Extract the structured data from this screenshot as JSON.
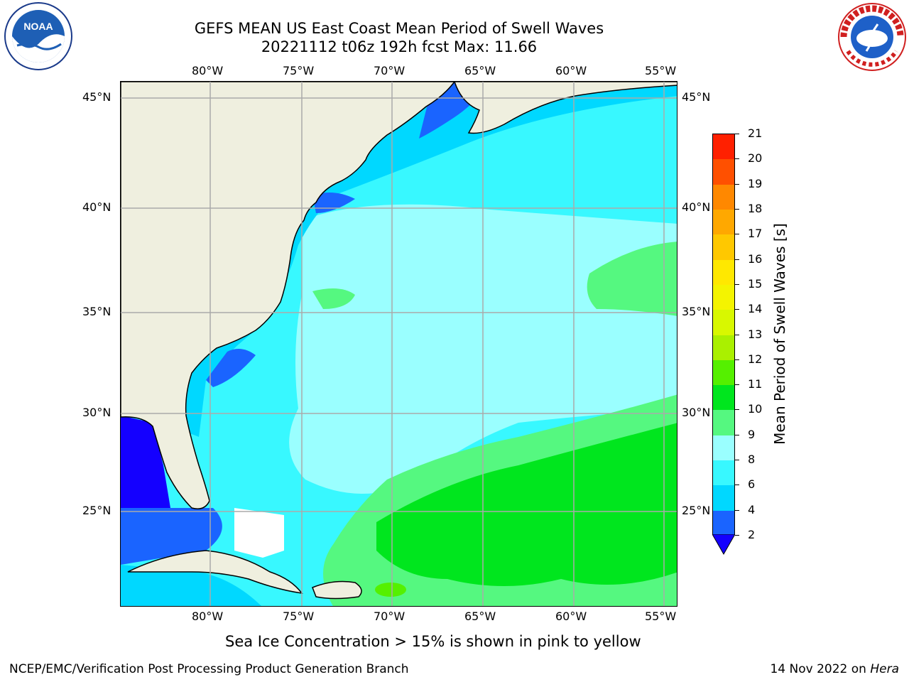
{
  "title": {
    "line1": "GEFS MEAN US East Coast Mean Period of Swell Waves",
    "line2": "20221112 t06z 192h fcst   Max: 11.66"
  },
  "logos": {
    "left": {
      "name": "noaa-logo",
      "text": "NOAA"
    },
    "right": {
      "name": "national-weather-service-logo",
      "text": "NATIONAL WEATHER SERVICE"
    }
  },
  "map": {
    "longitude_labels": [
      "80°W",
      "75°W",
      "70°W",
      "65°W",
      "60°W",
      "55°W"
    ],
    "latitude_labels": [
      "45°N",
      "40°N",
      "35°N",
      "30°N",
      "25°N"
    ],
    "land_color": "#efefdf",
    "gridline_color": "#aaaaaa"
  },
  "colorbar": {
    "label": "Mean Period of Swell Waves [s]",
    "ticks": [
      "2",
      "4",
      "6",
      "8",
      "9",
      "10",
      "11",
      "12",
      "13",
      "14",
      "15",
      "16",
      "17",
      "18",
      "19",
      "20",
      "21"
    ],
    "colors": [
      "#1a64ff",
      "#00d8ff",
      "#38f8ff",
      "#9affff",
      "#55f880",
      "#00e61e",
      "#55f000",
      "#aaf000",
      "#d8f800",
      "#f4f400",
      "#ffe800",
      "#ffc800",
      "#ffa800",
      "#ff8800",
      "#ff5000",
      "#ff2000"
    ],
    "under_color": "#1400ff"
  },
  "note": "Sea Ice Concentration > 15% is shown in pink to yellow",
  "footer": {
    "left": "NCEP/EMC/Verification Post Processing Product Generation Branch",
    "date": "14 Nov 2022 on ",
    "machine": "Hera"
  }
}
